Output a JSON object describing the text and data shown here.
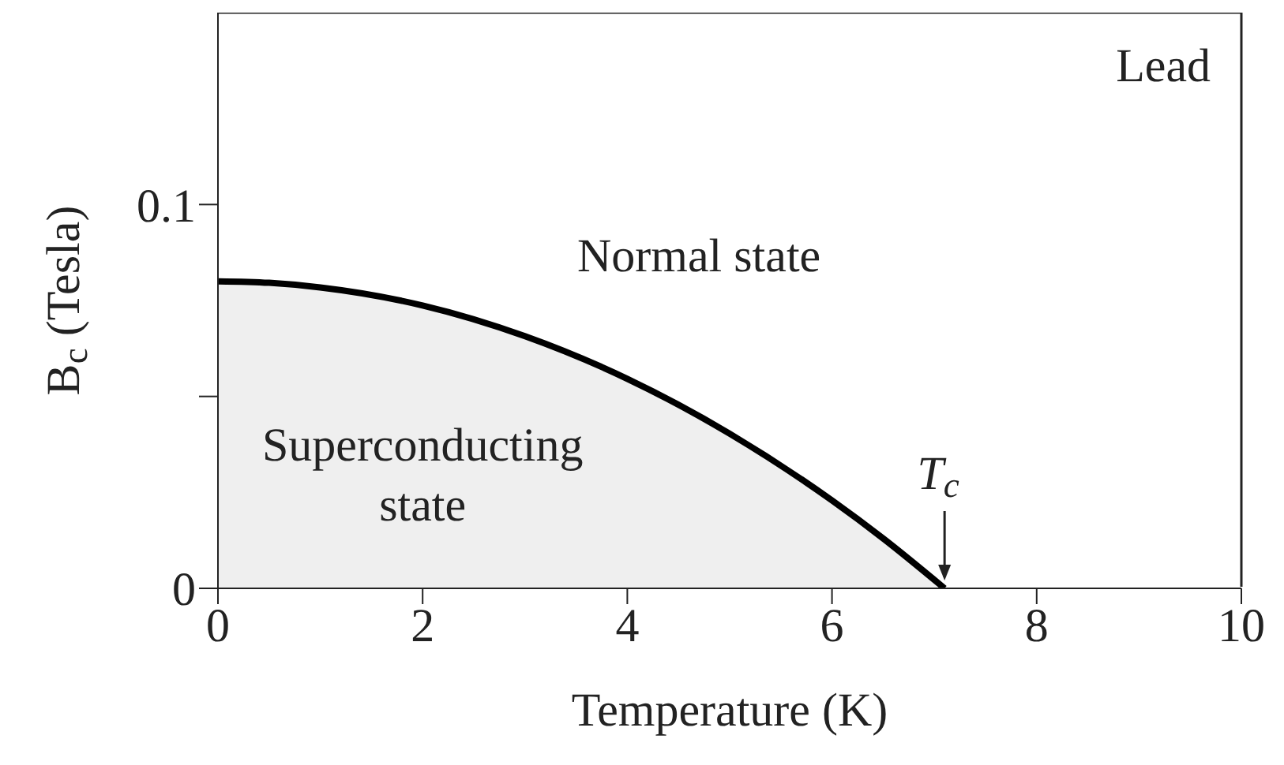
{
  "chart_data": {
    "type": "area",
    "xlabel": "Temperature (K)",
    "ylabel": "B$_{c}$ (Tesla)",
    "x": [
      0,
      0.5,
      1,
      2,
      3,
      4,
      5,
      6,
      6.5,
      7.1
    ],
    "series": [
      {
        "color": "#000000",
        "values": [
          0.08,
          0.0796,
          0.0784,
          0.0737,
          0.0657,
          0.0546,
          0.0403,
          0.0229,
          0.013,
          0
        ]
      }
    ],
    "xlim": [
      0,
      10
    ],
    "xticks": [
      0,
      2,
      4,
      6,
      8,
      10
    ],
    "ylim": [
      0,
      0.15
    ],
    "yticks": [
      0,
      {
        "value": 0.05,
        "label": null
      },
      0.1
    ],
    "grid": false,
    "legend": false,
    "marker": "none",
    "line_style": "solid",
    "annotations": [
      "Lead",
      "Normal state",
      "Superconducting state",
      {
        "text": "T$_{c}$",
        "x": 7.1,
        "y": 0
      }
    ]
  }
}
